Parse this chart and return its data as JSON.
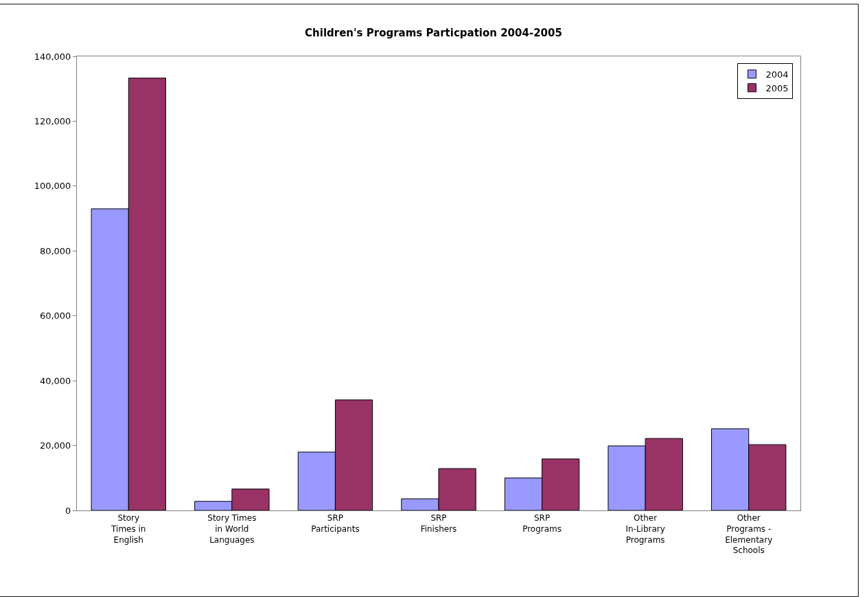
{
  "chart_data": {
    "type": "bar",
    "title": "Children's Programs Particpation 2004-2005",
    "categories": [
      "Story\nTimes in\nEnglish",
      "Story Times\nin World\nLanguages",
      "SRP\nParticipants",
      "SRP\nFinishers",
      "SRP\nPrograms",
      "Other\nIn-Library\nPrograms",
      "Other\nPrograms -\nElementary\nSchools"
    ],
    "series": [
      {
        "name": "2004",
        "color": "#9999ff",
        "values": [
          93000,
          2800,
          18000,
          3600,
          10000,
          19900,
          25200
        ]
      },
      {
        "name": "2005",
        "color": "#993366",
        "values": [
          133300,
          6600,
          34100,
          12900,
          15900,
          22200,
          20300
        ]
      }
    ],
    "ylim": [
      0,
      140000
    ],
    "yticks": [
      {
        "value": 0,
        "label": "0"
      },
      {
        "value": 20000,
        "label": "20,000"
      },
      {
        "value": 40000,
        "label": "40,000"
      },
      {
        "value": 60000,
        "label": "60,000"
      },
      {
        "value": 80000,
        "label": "80,000"
      },
      {
        "value": 100000,
        "label": "100,000"
      },
      {
        "value": 120000,
        "label": "120,000"
      },
      {
        "value": 140000,
        "label": "140,000"
      }
    ],
    "legend": "top right",
    "grid": false
  }
}
